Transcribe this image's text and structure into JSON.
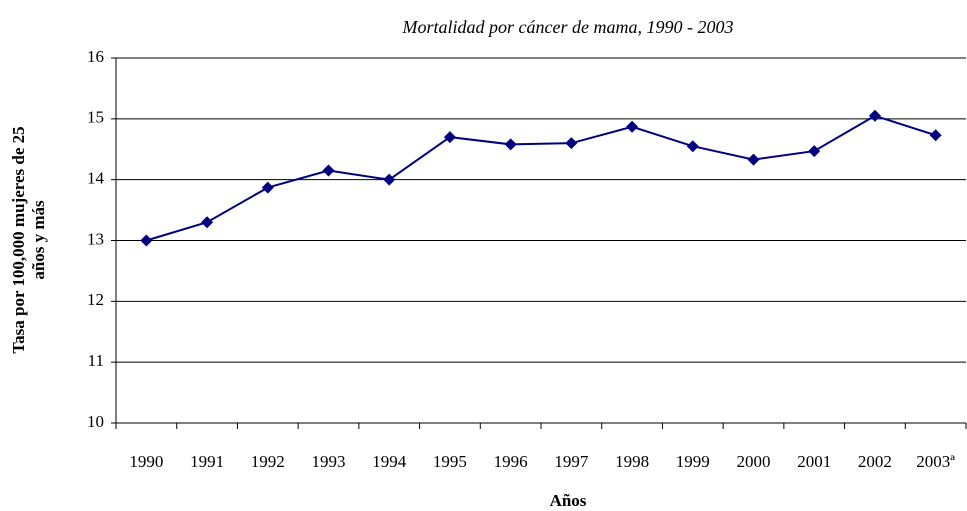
{
  "chart_data": {
    "type": "line",
    "title": "Mortalidad por cáncer de mama, 1990 - 2003",
    "xlabel": "Años",
    "ylabel": [
      "Tasa por 100,000 mujeres de 25",
      "años y más"
    ],
    "categories": [
      "1990",
      "1991",
      "1992",
      "1993",
      "1994",
      "1995",
      "1996",
      "1997",
      "1998",
      "1999",
      "2000",
      "2001",
      "2002",
      "2003ª"
    ],
    "values": [
      13.0,
      13.3,
      13.87,
      14.15,
      14.0,
      14.7,
      14.58,
      14.6,
      14.87,
      14.55,
      14.33,
      14.47,
      15.05,
      14.73
    ],
    "color": "#000080",
    "ylim": [
      10,
      16
    ],
    "yticks": [
      10,
      11,
      12,
      13,
      14,
      15,
      16
    ],
    "grid": true
  }
}
